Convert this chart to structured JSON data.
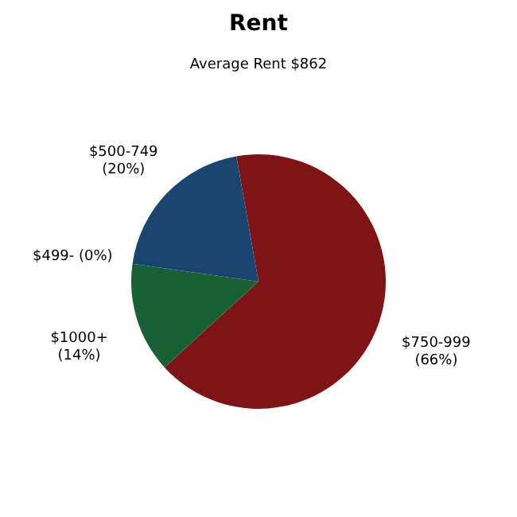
{
  "chart_data": {
    "type": "pie",
    "title": "Rent",
    "subtitle": "Average Rent  $862",
    "categories": [
      "$750-999",
      "$1000+",
      "$499-",
      "$500-749"
    ],
    "values": [
      66,
      14,
      0,
      20
    ],
    "value_labels": [
      "(66%)",
      "(14%)",
      "(0%)",
      "(20%)"
    ],
    "colors": [
      "#7f1416",
      "#1a6035",
      "#1a4570",
      "#1a4570"
    ],
    "legend": false
  }
}
